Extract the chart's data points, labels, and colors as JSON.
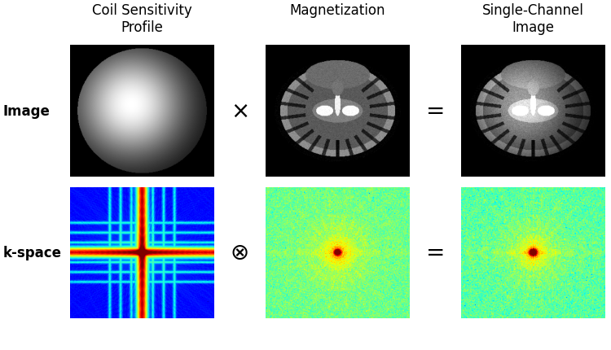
{
  "title_col1": "Coil Sensitivity\nProfile",
  "title_col2": "Magnetization",
  "title_col3": "Single-Channel\nImage",
  "row1_label": "Image",
  "row2_label": "k-space",
  "operator_row1": "×",
  "operator_row2": "⊗",
  "equals": "=",
  "bg_color": "#ffffff",
  "title_fontsize": 12,
  "label_fontsize": 12,
  "operator_fontsize": 20,
  "image_size": 256
}
